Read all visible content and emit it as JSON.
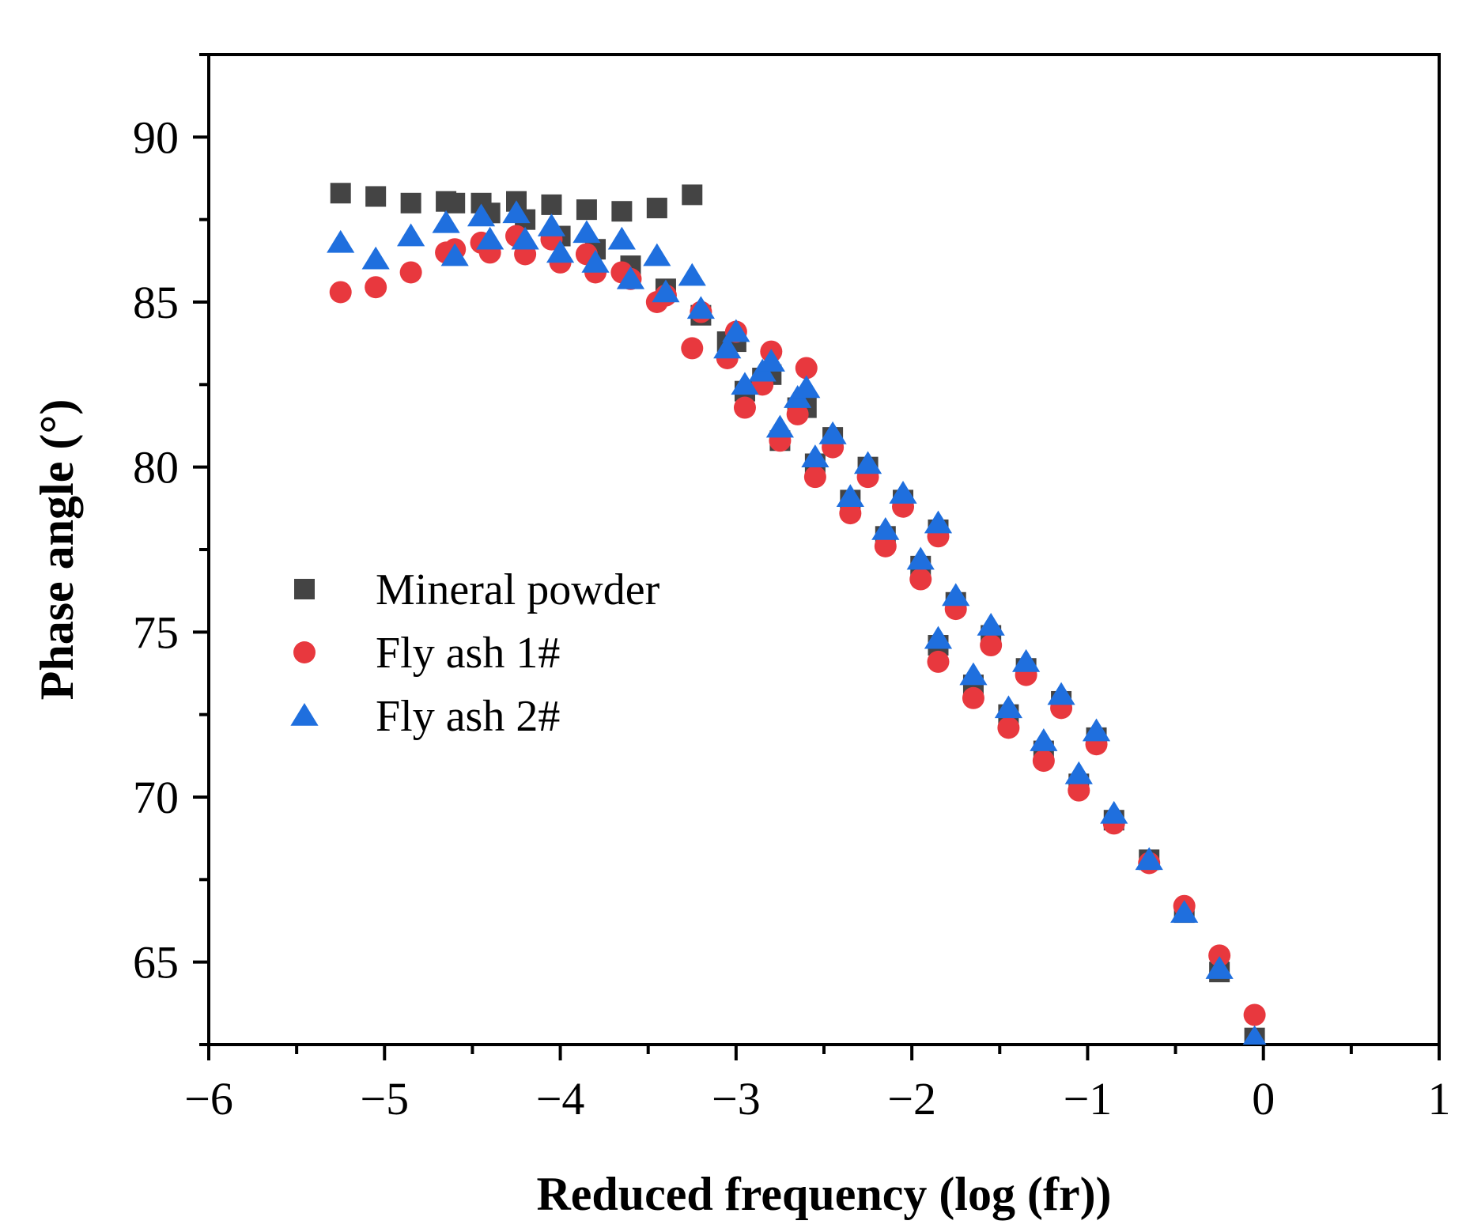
{
  "chart_data": {
    "type": "scatter",
    "xlabel": "Reduced frequency (log (fr))",
    "ylabel": "Phase angle (°)",
    "xlim": [
      -6,
      1
    ],
    "ylim": [
      62.5,
      92.5
    ],
    "xticks": [
      -6,
      -5,
      -4,
      -3,
      -2,
      -1,
      0,
      1
    ],
    "xtick_labels": [
      "−6",
      "−5",
      "−4",
      "−3",
      "−2",
      "−1",
      "0",
      "1"
    ],
    "yticks": [
      65,
      70,
      75,
      80,
      85,
      90
    ],
    "ytick_labels": [
      "65",
      "70",
      "75",
      "80",
      "85",
      "90"
    ],
    "legend_position": "left-middle",
    "series": [
      {
        "name": "Mineral powder",
        "marker": "square",
        "color": "#444444",
        "points": [
          [
            -5.25,
            88.3
          ],
          [
            -5.05,
            88.2
          ],
          [
            -4.85,
            88.0
          ],
          [
            -4.65,
            88.05
          ],
          [
            -4.6,
            88.0
          ],
          [
            -4.45,
            88.0
          ],
          [
            -4.4,
            87.7
          ],
          [
            -4.25,
            88.05
          ],
          [
            -4.2,
            87.5
          ],
          [
            -4.05,
            87.95
          ],
          [
            -4.0,
            87.0
          ],
          [
            -3.85,
            87.8
          ],
          [
            -3.8,
            86.6
          ],
          [
            -3.65,
            87.75
          ],
          [
            -3.6,
            86.1
          ],
          [
            -3.45,
            87.85
          ],
          [
            -3.4,
            85.4
          ],
          [
            -3.25,
            88.25
          ],
          [
            -3.2,
            84.6
          ],
          [
            -3.05,
            83.8
          ],
          [
            -3.0,
            83.8
          ],
          [
            -2.95,
            82.3
          ],
          [
            -2.85,
            82.7
          ],
          [
            -2.8,
            82.8
          ],
          [
            -2.75,
            80.8
          ],
          [
            -2.65,
            81.8
          ],
          [
            -2.6,
            81.8
          ],
          [
            -2.55,
            80.1
          ],
          [
            -2.45,
            80.9
          ],
          [
            -2.35,
            79.0
          ],
          [
            -2.25,
            80.0
          ],
          [
            -2.15,
            77.9
          ],
          [
            -2.05,
            79.0
          ],
          [
            -1.95,
            77.0
          ],
          [
            -1.85,
            78.1
          ],
          [
            -1.85,
            74.6
          ],
          [
            -1.75,
            75.9
          ],
          [
            -1.65,
            73.4
          ],
          [
            -1.55,
            74.9
          ],
          [
            -1.45,
            72.5
          ],
          [
            -1.35,
            73.9
          ],
          [
            -1.25,
            71.4
          ],
          [
            -1.15,
            72.9
          ],
          [
            -1.05,
            70.4
          ],
          [
            -0.95,
            71.8
          ],
          [
            -0.85,
            69.3
          ],
          [
            -0.65,
            68.1
          ],
          [
            -0.45,
            66.5
          ],
          [
            -0.25,
            64.7
          ],
          [
            -0.05,
            62.7
          ]
        ]
      },
      {
        "name": "Fly ash 1#",
        "marker": "circle",
        "color": "#e8383e",
        "points": [
          [
            -5.25,
            85.3
          ],
          [
            -5.05,
            85.45
          ],
          [
            -4.85,
            85.9
          ],
          [
            -4.65,
            86.5
          ],
          [
            -4.6,
            86.6
          ],
          [
            -4.45,
            86.8
          ],
          [
            -4.4,
            86.5
          ],
          [
            -4.25,
            87.0
          ],
          [
            -4.2,
            86.45
          ],
          [
            -4.05,
            86.9
          ],
          [
            -4.0,
            86.2
          ],
          [
            -3.85,
            86.45
          ],
          [
            -3.8,
            85.9
          ],
          [
            -3.65,
            85.9
          ],
          [
            -3.6,
            85.7
          ],
          [
            -3.45,
            85.0
          ],
          [
            -3.4,
            85.2
          ],
          [
            -3.25,
            83.6
          ],
          [
            -3.2,
            84.7
          ],
          [
            -3.05,
            83.3
          ],
          [
            -3.0,
            84.1
          ],
          [
            -2.95,
            81.8
          ],
          [
            -2.85,
            82.5
          ],
          [
            -2.8,
            83.5
          ],
          [
            -2.75,
            80.8
          ],
          [
            -2.65,
            81.6
          ],
          [
            -2.6,
            83.0
          ],
          [
            -2.55,
            79.7
          ],
          [
            -2.45,
            80.6
          ],
          [
            -2.35,
            78.6
          ],
          [
            -2.25,
            79.7
          ],
          [
            -2.15,
            77.6
          ],
          [
            -2.05,
            78.8
          ],
          [
            -1.95,
            76.6
          ],
          [
            -1.85,
            77.9
          ],
          [
            -1.85,
            74.1
          ],
          [
            -1.75,
            75.7
          ],
          [
            -1.65,
            73.0
          ],
          [
            -1.55,
            74.6
          ],
          [
            -1.45,
            72.1
          ],
          [
            -1.35,
            73.7
          ],
          [
            -1.25,
            71.1
          ],
          [
            -1.15,
            72.7
          ],
          [
            -1.05,
            70.2
          ],
          [
            -0.95,
            71.6
          ],
          [
            -0.85,
            69.2
          ],
          [
            -0.65,
            68.0
          ],
          [
            -0.45,
            66.7
          ],
          [
            -0.25,
            65.2
          ],
          [
            -0.05,
            63.4
          ]
        ]
      },
      {
        "name": "Fly ash 2#",
        "marker": "triangle",
        "color": "#1f6fde",
        "points": [
          [
            -5.25,
            86.8
          ],
          [
            -5.05,
            86.3
          ],
          [
            -4.85,
            87.0
          ],
          [
            -4.65,
            87.4
          ],
          [
            -4.6,
            86.4
          ],
          [
            -4.45,
            87.6
          ],
          [
            -4.4,
            86.9
          ],
          [
            -4.25,
            87.7
          ],
          [
            -4.2,
            86.9
          ],
          [
            -4.05,
            87.3
          ],
          [
            -4.0,
            86.5
          ],
          [
            -3.85,
            87.1
          ],
          [
            -3.8,
            86.2
          ],
          [
            -3.65,
            86.9
          ],
          [
            -3.6,
            85.7
          ],
          [
            -3.45,
            86.4
          ],
          [
            -3.4,
            85.3
          ],
          [
            -3.25,
            85.8
          ],
          [
            -3.2,
            84.8
          ],
          [
            -3.05,
            83.6
          ],
          [
            -3.0,
            84.1
          ],
          [
            -2.95,
            82.5
          ],
          [
            -2.85,
            82.9
          ],
          [
            -2.8,
            83.2
          ],
          [
            -2.75,
            81.2
          ],
          [
            -2.65,
            82.1
          ],
          [
            -2.6,
            82.4
          ],
          [
            -2.55,
            80.3
          ],
          [
            -2.45,
            81.0
          ],
          [
            -2.35,
            79.1
          ],
          [
            -2.25,
            80.1
          ],
          [
            -2.15,
            78.1
          ],
          [
            -2.05,
            79.2
          ],
          [
            -1.95,
            77.2
          ],
          [
            -1.85,
            78.3
          ],
          [
            -1.85,
            74.8
          ],
          [
            -1.75,
            76.1
          ],
          [
            -1.65,
            73.7
          ],
          [
            -1.55,
            75.2
          ],
          [
            -1.45,
            72.7
          ],
          [
            -1.35,
            74.1
          ],
          [
            -1.25,
            71.7
          ],
          [
            -1.15,
            73.1
          ],
          [
            -1.05,
            70.7
          ],
          [
            -0.95,
            72.0
          ],
          [
            -0.85,
            69.5
          ],
          [
            -0.65,
            68.1
          ],
          [
            -0.45,
            66.5
          ],
          [
            -0.25,
            64.8
          ],
          [
            -0.05,
            62.7
          ]
        ]
      }
    ]
  }
}
